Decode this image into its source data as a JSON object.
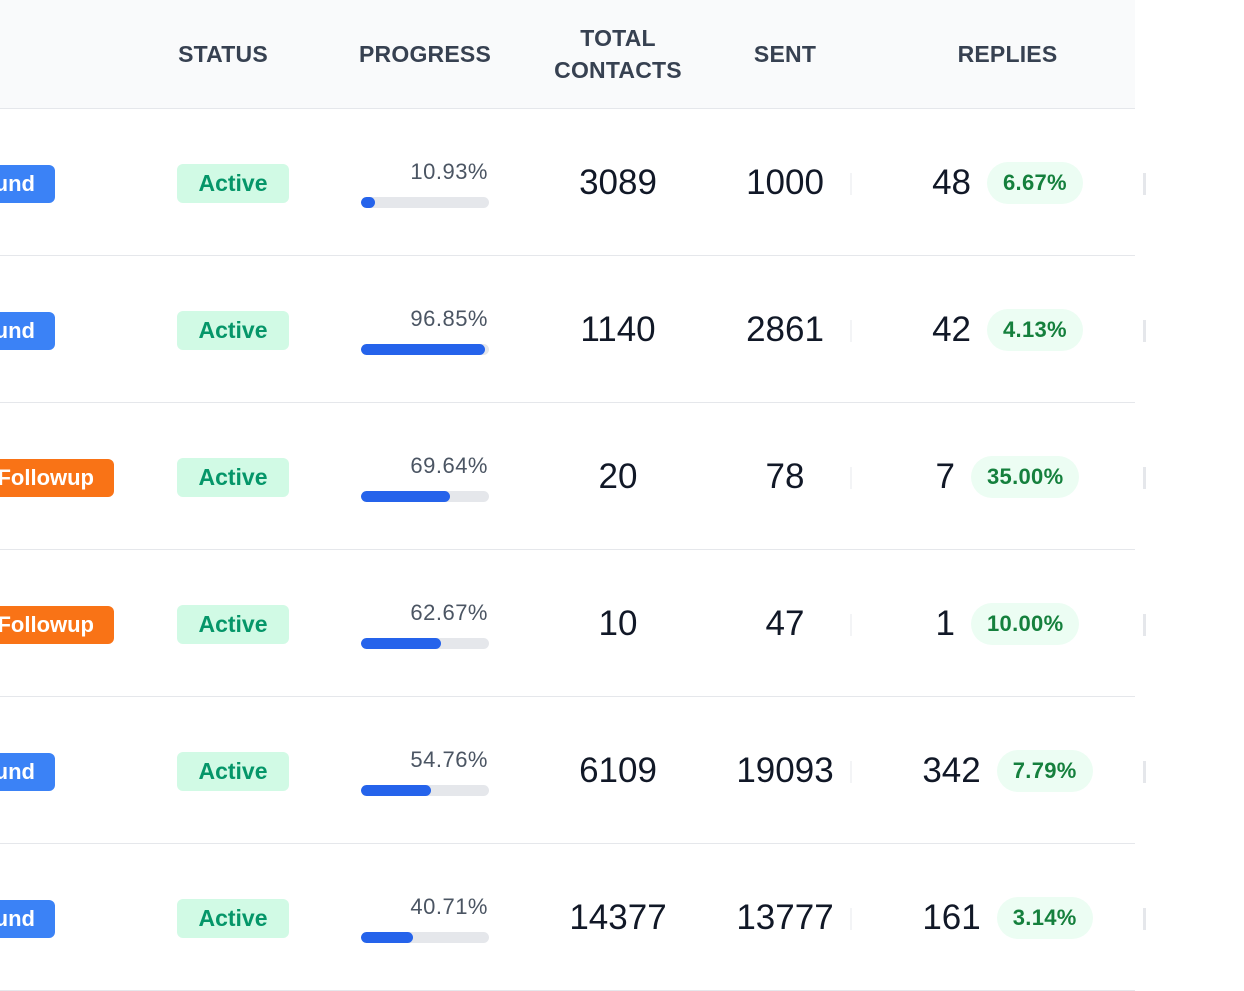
{
  "header": {
    "status": "STATUS",
    "progress": "PROGRESS",
    "total_contacts_line1": "TOTAL",
    "total_contacts_line2": "CONTACTS",
    "sent": "SENT",
    "replies": "REPLIES"
  },
  "colors": {
    "type_blue": "#3b82f6",
    "type_orange": "#f97316",
    "status_bg": "#d1fae5",
    "status_text": "#059669",
    "progress_fill": "#2563eb",
    "reply_rate_bg": "#ecfdf3",
    "reply_rate_text": "#15803d"
  },
  "rows": [
    {
      "type": "und",
      "type_color": "blue",
      "status": "Active",
      "progress_label": "10.93%",
      "progress_value": 0.1093,
      "total_contacts": "3089",
      "sent": "1000",
      "replies": "48",
      "reply_rate": "6.67%"
    },
    {
      "type": "und",
      "type_color": "blue",
      "status": "Active",
      "progress_label": "96.85%",
      "progress_value": 0.9685,
      "total_contacts": "1140",
      "sent": "2861",
      "replies": "42",
      "reply_rate": "4.13%"
    },
    {
      "type": "Followup",
      "type_color": "orange",
      "status": "Active",
      "progress_label": "69.64%",
      "progress_value": 0.6964,
      "total_contacts": "20",
      "sent": "78",
      "replies": "7",
      "reply_rate": "35.00%"
    },
    {
      "type": "Followup",
      "type_color": "orange",
      "status": "Active",
      "progress_label": "62.67%",
      "progress_value": 0.6267,
      "total_contacts": "10",
      "sent": "47",
      "replies": "1",
      "reply_rate": "10.00%"
    },
    {
      "type": "und",
      "type_color": "blue",
      "status": "Active",
      "progress_label": "54.76%",
      "progress_value": 0.5476,
      "total_contacts": "6109",
      "sent": "19093",
      "replies": "342",
      "reply_rate": "7.79%"
    },
    {
      "type": "und",
      "type_color": "blue",
      "status": "Active",
      "progress_label": "40.71%",
      "progress_value": 0.4071,
      "total_contacts": "14377",
      "sent": "13777",
      "replies": "161",
      "reply_rate": "3.14%"
    }
  ]
}
